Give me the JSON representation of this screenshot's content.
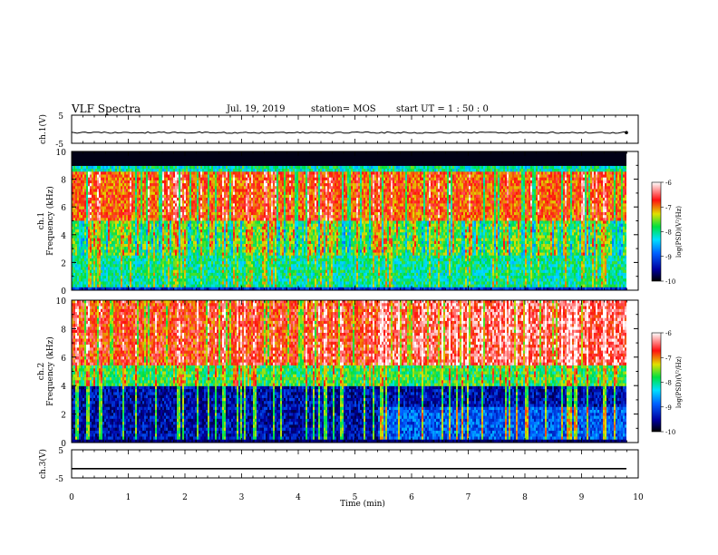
{
  "header": {
    "title": "VLF Spectra",
    "date": "Jul. 19, 2019",
    "station": "station= MOS",
    "start_ut": "start UT =  1 : 50 : 0"
  },
  "chart_data": [
    {
      "type": "line",
      "panel": "ch1-waveform",
      "ylabel": "ch.1(V)",
      "ylim": [
        -5,
        5
      ],
      "yticks": [
        5,
        -5
      ],
      "xlim": [
        0,
        10
      ],
      "series": [
        {
          "values_constant": -1.2
        }
      ]
    },
    {
      "type": "heatmap",
      "panel": "ch1-spectrogram",
      "ylabel": "ch.1 Frequency (kHz)",
      "ylim": [
        0,
        10
      ],
      "yticks": [
        0,
        2,
        4,
        6,
        8,
        10
      ],
      "xlim": [
        0,
        9.85
      ],
      "colorbar": {
        "label": "log(PSD)(V²/Hz)",
        "ticks": [
          -6,
          -7,
          -8,
          -9,
          -10
        ]
      }
    },
    {
      "type": "heatmap",
      "panel": "ch2-spectrogram",
      "ylabel": "ch.2 Frequency (kHz)",
      "ylim": [
        0,
        10
      ],
      "yticks": [
        0,
        2,
        4,
        6,
        8,
        10
      ],
      "xlim": [
        0,
        9.85
      ],
      "colorbar": {
        "label": "log(PSD)(V²/Hz)",
        "ticks": [
          -6,
          -7,
          -8,
          -9,
          -10
        ]
      }
    },
    {
      "type": "line",
      "panel": "ch3-waveform",
      "ylabel": "ch.3(V)",
      "ylim": [
        -5,
        5
      ],
      "yticks": [
        5,
        -5
      ],
      "xlim": [
        0,
        10
      ],
      "series": [
        {
          "values_constant": -1.7
        }
      ]
    }
  ],
  "xaxis": {
    "label": "Time (min)",
    "ticks": [
      "0",
      "1",
      "2",
      "3",
      "4",
      "5",
      "6",
      "7",
      "8",
      "9",
      "10"
    ]
  }
}
